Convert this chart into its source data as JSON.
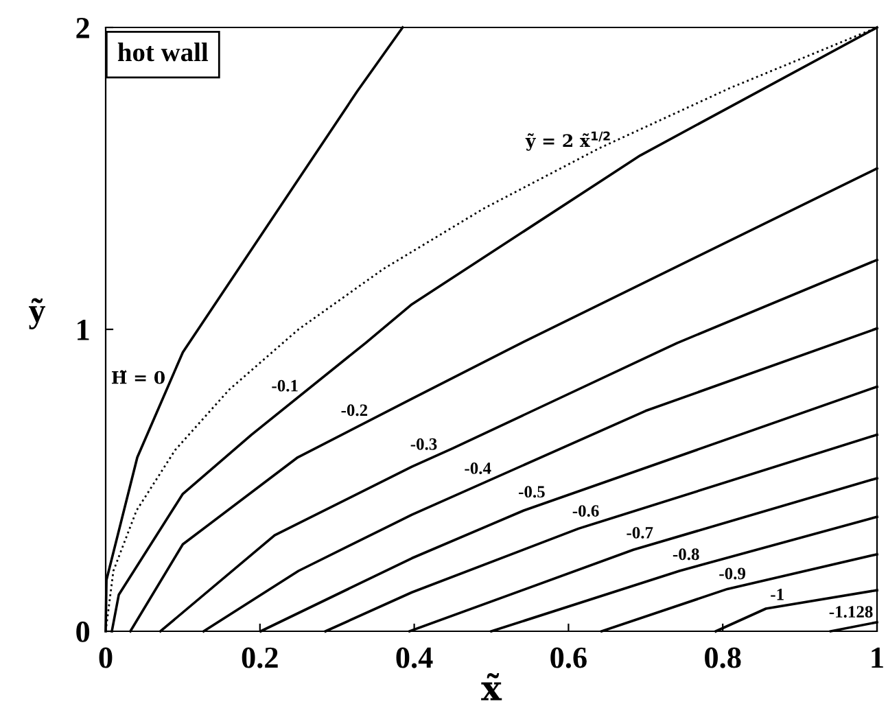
{
  "chart_data": {
    "type": "line",
    "xlabel": "x̃",
    "ylabel": "ỹ",
    "xlim": [
      0,
      1
    ],
    "ylim": [
      0,
      2
    ],
    "xticks": [
      0,
      {
        "value": 0.2,
        "label": "0.2"
      },
      {
        "value": 0.4,
        "label": "0.4"
      },
      {
        "value": 0.6,
        "label": "0.6"
      },
      {
        "value": 0.8,
        "label": "0.8"
      },
      1
    ],
    "yticks": [
      0,
      1,
      2
    ],
    "grid": false,
    "legend": false,
    "annotations": [
      "hot wall"
    ],
    "series": [
      {
        "name": "H̃ = 0",
        "color": "#000000",
        "x": [
          0,
          0.001,
          0.041,
          0.1,
          0.219,
          0.326,
          0.385
        ],
        "values": [
          0,
          0.17,
          0.576,
          0.924,
          1.379,
          1.788,
          2
        ]
      },
      {
        "name": "ỹ = 2 x̃$^{1/2}$",
        "color": "#000000",
        "line_style": "dotted",
        "x": [
          0,
          0.01,
          0.04,
          0.09,
          0.16,
          0.25,
          0.36,
          0.49,
          0.64,
          0.81,
          1
        ],
        "values": [
          0,
          0.2,
          0.4,
          0.6,
          0.8,
          1,
          1.2,
          1.4,
          1.6,
          1.8,
          2
        ]
      },
      {
        "name": "-0.1",
        "color": "#000000",
        "x": [
          0.008,
          0.017,
          0.1,
          0.189,
          0.337,
          0.397,
          0.693,
          1
        ],
        "values": [
          0,
          0.121,
          0.455,
          0.651,
          0.955,
          1.083,
          1.576,
          2
        ]
      },
      {
        "name": "-0.2",
        "color": "#000000",
        "x": [
          0.032,
          0.1,
          0.249,
          0.397,
          0.539,
          1
        ],
        "values": [
          0,
          0.288,
          0.576,
          0.77,
          0.955,
          1.533
        ]
      },
      {
        "name": "-0.3",
        "color": "#000000",
        "x": [
          0.071,
          0.219,
          0.397,
          0.45,
          0.741,
          1
        ],
        "values": [
          0,
          0.318,
          0.545,
          0.606,
          0.955,
          1.23
        ]
      },
      {
        "name": "-0.4",
        "color": "#000000",
        "x": [
          0.127,
          0.25,
          0.397,
          0.7,
          1
        ],
        "values": [
          0,
          0.2,
          0.386,
          0.73,
          1.003
        ]
      },
      {
        "name": "-0.5",
        "color": "#000000",
        "x": [
          0.201,
          0.397,
          0.542,
          1
        ],
        "values": [
          0,
          0.242,
          0.4,
          0.81
        ]
      },
      {
        "name": "-0.6",
        "color": "#000000",
        "x": [
          0.285,
          0.397,
          0.613,
          1
        ],
        "values": [
          0,
          0.129,
          0.34,
          0.651
        ]
      },
      {
        "name": "-0.7",
        "color": "#000000",
        "x": [
          0.394,
          0.684,
          1
        ],
        "values": [
          0,
          0.27,
          0.507
        ]
      },
      {
        "name": "-0.8",
        "color": "#000000",
        "x": [
          0.5,
          0.744,
          1
        ],
        "values": [
          0,
          0.2,
          0.379
        ]
      },
      {
        "name": "-0.9",
        "color": "#000000",
        "x": [
          0.643,
          0.806,
          1
        ],
        "values": [
          0,
          0.14,
          0.255
        ]
      },
      {
        "name": "-1",
        "color": "#000000",
        "x": [
          0.791,
          0.856,
          1
        ],
        "values": [
          0,
          0.075,
          0.136
        ]
      },
      {
        "name": "-1.128",
        "color": "#000000",
        "x": [
          0.94,
          1
        ],
        "values": [
          0,
          0.03
        ]
      }
    ]
  }
}
